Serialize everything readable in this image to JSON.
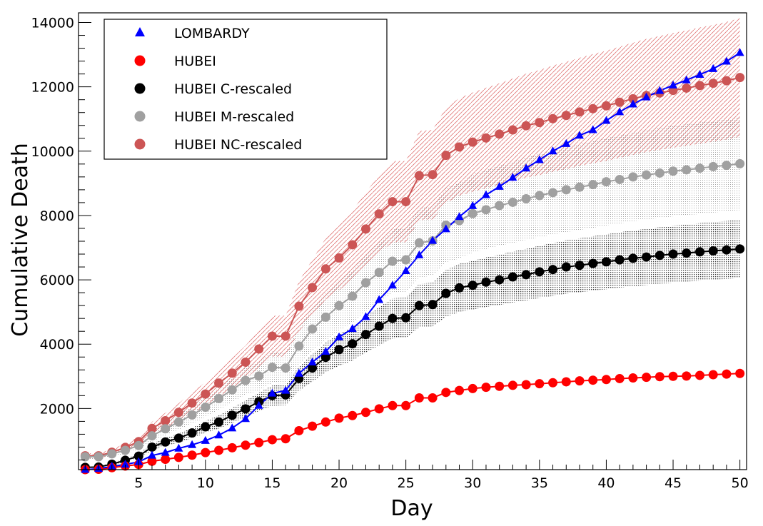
{
  "chart_data": {
    "type": "line",
    "title": "",
    "xlabel": "Day",
    "ylabel": "Cumulative Death",
    "xlim": [
      0.5,
      50.5
    ],
    "ylim": [
      100,
      14300
    ],
    "x_ticks": [
      5,
      10,
      15,
      20,
      25,
      30,
      35,
      40,
      45,
      50
    ],
    "y_ticks": [
      2000,
      4000,
      6000,
      8000,
      10000,
      12000,
      14000
    ],
    "legend_position": "top-left",
    "series": [
      {
        "name": "HUBEI NC-rescaled",
        "color": "#cc5555",
        "marker": "circle",
        "band_color": "#dd6666",
        "band_pattern": "hatched",
        "band_fraction": 0.15,
        "values": [
          530,
          530,
          640,
          790,
          970,
          1380,
          1620,
          1880,
          2170,
          2450,
          2790,
          3100,
          3440,
          3850,
          4250,
          4250,
          5180,
          5760,
          6340,
          6680,
          7090,
          7580,
          8050,
          8430,
          8430,
          9240,
          9270,
          9870,
          10130,
          10280,
          10410,
          10530,
          10660,
          10790,
          10890,
          11010,
          11110,
          11220,
          11320,
          11410,
          11520,
          11630,
          11730,
          11810,
          11890,
          11960,
          12040,
          12110,
          12190,
          12290
        ]
      },
      {
        "name": "HUBEI M-rescaled",
        "color": "#a0a0a0",
        "marker": "circle",
        "band_color": "#bdbdbd",
        "band_pattern": "dotted",
        "band_fraction": 0.15,
        "values": [
          500,
          500,
          590,
          700,
          850,
          1150,
          1370,
          1580,
          1800,
          2040,
          2310,
          2580,
          2870,
          3010,
          3280,
          3260,
          3940,
          4470,
          4840,
          5200,
          5490,
          5910,
          6230,
          6580,
          6620,
          7150,
          7210,
          7700,
          7840,
          8060,
          8180,
          8310,
          8410,
          8520,
          8620,
          8710,
          8800,
          8880,
          8960,
          9050,
          9120,
          9200,
          9260,
          9320,
          9380,
          9420,
          9470,
          9520,
          9560,
          9610
        ]
      },
      {
        "name": "HUBEI C-rescaled",
        "color": "#000000",
        "marker": "circle",
        "band_color": "#333333",
        "band_pattern": "dotted",
        "band_fraction": 0.13,
        "values": [
          170,
          180,
          270,
          390,
          520,
          800,
          960,
          1080,
          1240,
          1430,
          1580,
          1790,
          1990,
          2210,
          2400,
          2420,
          2930,
          3260,
          3590,
          3830,
          4010,
          4300,
          4560,
          4800,
          4820,
          5200,
          5230,
          5580,
          5750,
          5830,
          5930,
          6000,
          6090,
          6160,
          6250,
          6320,
          6400,
          6450,
          6510,
          6560,
          6620,
          6670,
          6710,
          6760,
          6800,
          6830,
          6870,
          6900,
          6930,
          6960
        ]
      },
      {
        "name": "HUBEI",
        "color": "#ff0000",
        "marker": "circle",
        "values": [
          100,
          110,
          160,
          210,
          260,
          360,
          420,
          480,
          550,
          630,
          700,
          780,
          860,
          940,
          1030,
          1060,
          1310,
          1450,
          1580,
          1700,
          1780,
          1880,
          1990,
          2090,
          2090,
          2330,
          2330,
          2500,
          2560,
          2620,
          2660,
          2690,
          2720,
          2740,
          2770,
          2800,
          2830,
          2860,
          2880,
          2900,
          2930,
          2950,
          2970,
          2990,
          3000,
          3010,
          3030,
          3050,
          3070,
          3090
        ]
      },
      {
        "name": "LOMBARDY",
        "color": "#0000ff",
        "marker": "triangle",
        "values": [
          100,
          130,
          200,
          260,
          340,
          540,
          630,
          760,
          870,
          1000,
          1170,
          1390,
          1680,
          2090,
          2470,
          2560,
          3090,
          3440,
          3770,
          4220,
          4480,
          4850,
          5380,
          5830,
          6280,
          6770,
          7220,
          7580,
          7960,
          8300,
          8640,
          8900,
          9180,
          9470,
          9730,
          10000,
          10230,
          10490,
          10660,
          10950,
          11220,
          11460,
          11680,
          11880,
          12050,
          12210,
          12380,
          12560,
          12790,
          13060
        ]
      }
    ]
  }
}
